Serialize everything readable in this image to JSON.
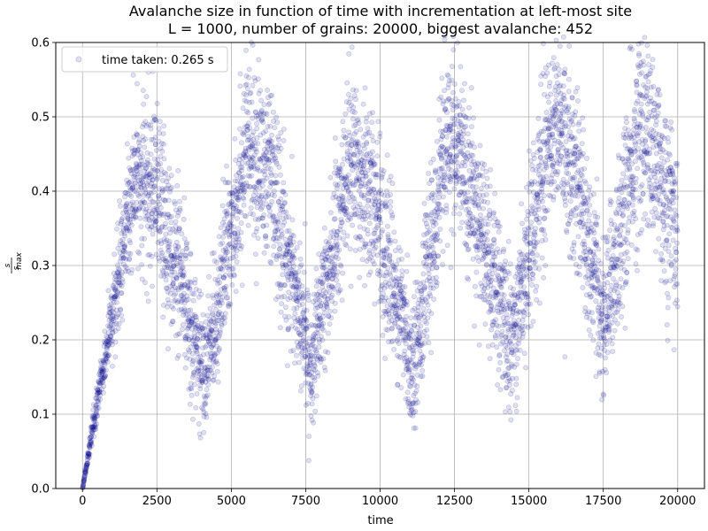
{
  "chart_data": {
    "type": "scatter",
    "title_line1": "Avalanche size in function of time with incrementation at left-most site",
    "title_line2": "L = 1000, number of grains: 20000, biggest avalanche: 452",
    "xlabel": "time",
    "ylabel_num": "s",
    "ylabel_den": "s",
    "ylabel_sub": "max",
    "xlim": [
      -900,
      20900
    ],
    "ylim": [
      0.0,
      0.6
    ],
    "xticks": [
      0,
      2500,
      5000,
      7500,
      10000,
      12500,
      15000,
      17500,
      20000
    ],
    "yticks": [
      0.0,
      0.1,
      0.2,
      0.3,
      0.4,
      0.5,
      0.6
    ],
    "xtick_labels": [
      "0",
      "2500",
      "5000",
      "7500",
      "10000",
      "12500",
      "15000",
      "17500",
      "20000"
    ],
    "ytick_labels": [
      "0.0",
      "0.1",
      "0.2",
      "0.3",
      "0.4",
      "0.5",
      "0.6"
    ],
    "grid": true,
    "legend_position": "upper-left",
    "point_color": "#00008b",
    "point_alpha": 0.12,
    "series": [
      {
        "name": "time taken: 0.265 s",
        "envelope_x": [
          0,
          1800,
          2600,
          4100,
          5500,
          6300,
          7700,
          9000,
          9700,
          11100,
          12300,
          12900,
          14400,
          15800,
          16500,
          17500,
          18800,
          20000
        ],
        "envelope_center": [
          0.0,
          0.42,
          0.38,
          0.15,
          0.46,
          0.42,
          0.16,
          0.45,
          0.4,
          0.16,
          0.48,
          0.42,
          0.19,
          0.5,
          0.44,
          0.22,
          0.5,
          0.34
        ],
        "envelope_spread": [
          0.0,
          0.05,
          0.06,
          0.04,
          0.06,
          0.06,
          0.04,
          0.06,
          0.06,
          0.04,
          0.06,
          0.06,
          0.05,
          0.06,
          0.06,
          0.05,
          0.07,
          0.07
        ],
        "n_points": 20000
      }
    ]
  }
}
